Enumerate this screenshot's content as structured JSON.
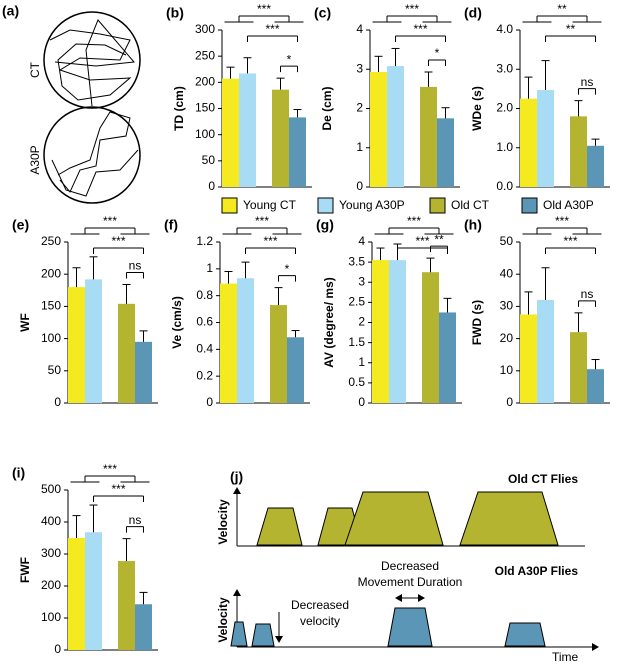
{
  "legend": [
    {
      "name": "Young CT",
      "color": "#f4ea1f"
    },
    {
      "name": "Young A30P",
      "color": "#a8dcf4"
    },
    {
      "name": "Old CT",
      "color": "#b4b431"
    },
    {
      "name": "Old A30P",
      "color": "#5c96b6"
    }
  ],
  "panel_a": {
    "label": "(a)",
    "rows": [
      "CT",
      "A30P"
    ]
  },
  "panel_j": {
    "label": "(j)",
    "top_title": "Old CT Flies",
    "bottom_title": "Old A30P Flies",
    "y_label": "Velocity",
    "x_label": "Time",
    "duration_note": [
      "Decreased",
      "Movement Duration"
    ],
    "velocity_note": [
      "Decreased",
      "velocity"
    ]
  },
  "chart_data": [
    {
      "type": "bar",
      "label": "(b)",
      "ylabel": "TD (cm)",
      "values": [
        207,
        217,
        186,
        133
      ],
      "errors": [
        22,
        30,
        22,
        15
      ],
      "ylim": [
        0,
        300
      ],
      "yticks": [
        0,
        50,
        100,
        150,
        200,
        250,
        300
      ],
      "comparisons": [
        {
          "label": "***",
          "a": [
            0,
            1
          ],
          "b": [
            2,
            3
          ]
        },
        {
          "label": "***",
          "a": [
            1
          ],
          "b": [
            3
          ]
        },
        {
          "label": "*",
          "a": [
            2
          ],
          "b": [
            3
          ]
        }
      ]
    },
    {
      "type": "bar",
      "label": "(c)",
      "ylabel": "De (cm)",
      "values": [
        2.93,
        3.08,
        2.55,
        1.75
      ],
      "errors": [
        0.4,
        0.45,
        0.38,
        0.27
      ],
      "ylim": [
        0,
        4
      ],
      "yticks": [
        0,
        1,
        2,
        3,
        4
      ],
      "comparisons": [
        {
          "label": "***",
          "a": [
            0,
            1
          ],
          "b": [
            2,
            3
          ]
        },
        {
          "label": "***",
          "a": [
            1
          ],
          "b": [
            3
          ]
        },
        {
          "label": "*",
          "a": [
            2
          ],
          "b": [
            3
          ]
        }
      ]
    },
    {
      "type": "bar",
      "label": "(d)",
      "ylabel": "WDe (s)",
      "values": [
        2.25,
        2.47,
        1.8,
        1.05
      ],
      "errors": [
        0.55,
        0.75,
        0.4,
        0.17
      ],
      "ylim": [
        0,
        4
      ],
      "yticks": [
        {
          "value": 0,
          "label": "0.0"
        },
        {
          "value": 1,
          "label": "1.0"
        },
        {
          "value": 2,
          "label": "2.0"
        },
        {
          "value": 3,
          "label": "3.0"
        },
        {
          "value": 4,
          "label": "4.0"
        }
      ],
      "comparisons": [
        {
          "label": "**",
          "a": [
            0,
            1
          ],
          "b": [
            2,
            3
          ]
        },
        {
          "label": "**",
          "a": [
            1
          ],
          "b": [
            3
          ]
        },
        {
          "label": "ns",
          "a": [
            2
          ],
          "b": [
            3
          ]
        }
      ]
    },
    {
      "type": "bar",
      "label": "(e)",
      "ylabel": "WF",
      "values": [
        180,
        192,
        154,
        95
      ],
      "errors": [
        30,
        35,
        30,
        17
      ],
      "ylim": [
        0,
        250
      ],
      "yticks": [
        0,
        50,
        100,
        150,
        200,
        250
      ],
      "comparisons": [
        {
          "label": "***",
          "a": [
            0,
            1
          ],
          "b": [
            2,
            3
          ]
        },
        {
          "label": "***",
          "a": [
            1
          ],
          "b": [
            3
          ]
        },
        {
          "label": "ns",
          "a": [
            2
          ],
          "b": [
            3
          ]
        }
      ]
    },
    {
      "type": "bar",
      "label": "(f)",
      "ylabel": "Ve (cm/s)",
      "values": [
        0.89,
        0.93,
        0.73,
        0.49
      ],
      "errors": [
        0.09,
        0.12,
        0.13,
        0.05
      ],
      "ylim": [
        0,
        1.2
      ],
      "yticks": [
        0,
        0.2,
        0.4,
        0.6,
        0.8,
        1,
        1.2
      ],
      "comparisons": [
        {
          "label": "***",
          "a": [
            0,
            1
          ],
          "b": [
            2,
            3
          ]
        },
        {
          "label": "***",
          "a": [
            1
          ],
          "b": [
            3
          ]
        },
        {
          "label": "*",
          "a": [
            2
          ],
          "b": [
            3
          ]
        }
      ]
    },
    {
      "type": "bar",
      "label": "(g)",
      "ylabel": "AV (degree/ ms)",
      "values": [
        3.55,
        3.55,
        3.25,
        2.25
      ],
      "errors": [
        0.3,
        0.4,
        0.35,
        0.35
      ],
      "ylim": [
        0,
        4
      ],
      "yticks": [
        0,
        0.5,
        1,
        1.5,
        2,
        2.5,
        3,
        3.5,
        4
      ],
      "comparisons": [
        {
          "label": "***",
          "a": [
            0,
            1
          ],
          "b": [
            2,
            3
          ]
        },
        {
          "label": "***",
          "a": [
            1
          ],
          "b": [
            3
          ]
        },
        {
          "label": "**",
          "a": [
            2
          ],
          "b": [
            3
          ]
        }
      ]
    },
    {
      "type": "bar",
      "label": "(h)",
      "ylabel": "FWD (s)",
      "values": [
        27.5,
        32,
        22,
        10.5
      ],
      "errors": [
        7,
        10,
        6,
        3
      ],
      "ylim": [
        0,
        50
      ],
      "yticks": [
        0,
        10,
        20,
        30,
        40,
        50
      ],
      "comparisons": [
        {
          "label": "***",
          "a": [
            0,
            1
          ],
          "b": [
            2,
            3
          ]
        },
        {
          "label": "***",
          "a": [
            1
          ],
          "b": [
            3
          ]
        },
        {
          "label": "ns",
          "a": [
            2
          ],
          "b": [
            3
          ]
        }
      ]
    },
    {
      "type": "bar",
      "label": "(i)",
      "ylabel": "FWF",
      "values": [
        350,
        368,
        278,
        143
      ],
      "errors": [
        70,
        85,
        70,
        37
      ],
      "ylim": [
        0,
        500
      ],
      "yticks": [
        0,
        100,
        200,
        300,
        400,
        500
      ],
      "comparisons": [
        {
          "label": "***",
          "a": [
            0,
            1
          ],
          "b": [
            2,
            3
          ]
        },
        {
          "label": "***",
          "a": [
            1
          ],
          "b": [
            3
          ]
        },
        {
          "label": "ns",
          "a": [
            2
          ],
          "b": [
            3
          ]
        }
      ]
    }
  ]
}
